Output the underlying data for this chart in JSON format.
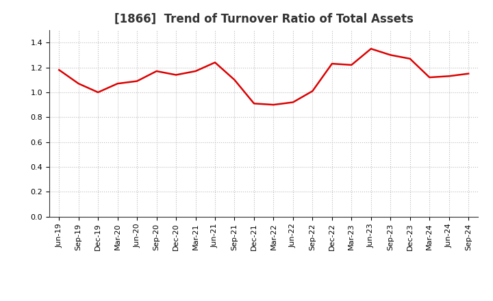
{
  "title": "[1866]  Trend of Turnover Ratio of Total Assets",
  "x_labels": [
    "Jun-19",
    "Sep-19",
    "Dec-19",
    "Mar-20",
    "Jun-20",
    "Sep-20",
    "Dec-20",
    "Mar-21",
    "Jun-21",
    "Sep-21",
    "Dec-21",
    "Mar-22",
    "Jun-22",
    "Sep-22",
    "Dec-22",
    "Mar-23",
    "Jun-23",
    "Sep-23",
    "Dec-23",
    "Mar-24",
    "Jun-24",
    "Sep-24"
  ],
  "y_values": [
    1.18,
    1.07,
    1.0,
    1.07,
    1.09,
    1.17,
    1.14,
    1.17,
    1.24,
    1.1,
    0.91,
    0.9,
    0.92,
    1.01,
    1.23,
    1.22,
    1.35,
    1.3,
    1.27,
    1.12,
    1.13,
    1.15
  ],
  "line_color": "#dd0000",
  "line_width": 1.8,
  "ylim": [
    0.0,
    1.5
  ],
  "yticks": [
    0.0,
    0.2,
    0.4,
    0.6,
    0.8,
    1.0,
    1.2,
    1.4
  ],
  "background_color": "#ffffff",
  "plot_bg_color": "#ffffff",
  "grid_color": "#bbbbbb",
  "title_fontsize": 12,
  "tick_fontsize": 8
}
